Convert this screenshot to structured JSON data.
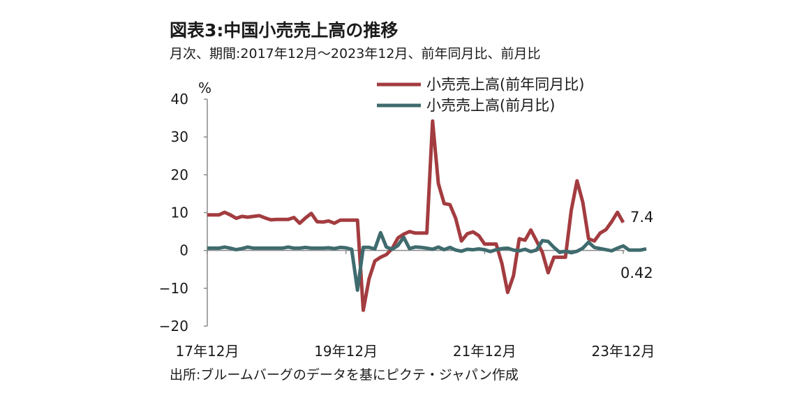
{
  "title": "図表3:中国小売売上高の推移",
  "subtitle": "月次、期間:2017年12月～2023年12月、前年同月比、前月比",
  "source": "出所:ブルームバーグのデータを基にピクテ・ジャパン作成",
  "chart_data": {
    "type": "line",
    "title": "図表3:中国小売売上高の推移",
    "subtitle": "月次、期間:2017年12月～2023年12月、前年同月比、前月比",
    "ylabel": "%",
    "ylim": [
      -20,
      40
    ],
    "yticks": [
      {
        "value": 40,
        "label": "40"
      },
      {
        "value": 30,
        "label": "30"
      },
      {
        "value": 20,
        "label": "20"
      },
      {
        "value": 10,
        "label": "10"
      },
      {
        "value": 0,
        "label": "0"
      },
      {
        "value": -10,
        "label": "−10"
      },
      {
        "value": -20,
        "label": "−20"
      }
    ],
    "xrange": [
      "2017-12",
      "2023-12"
    ],
    "xticks": [
      {
        "date": "2017-12",
        "label": "17年12月"
      },
      {
        "date": "2019-12",
        "label": "19年12月"
      },
      {
        "date": "2021-12",
        "label": "21年12月"
      },
      {
        "date": "2023-12",
        "label": "23年12月"
      }
    ],
    "grid": false,
    "legend_position": "top-right",
    "series": [
      {
        "name": "小売売上高(前年同月比)",
        "color": "#a33c40",
        "points": [
          [
            "2017-12",
            9.4
          ],
          [
            "2018-01",
            9.4
          ],
          [
            "2018-02",
            9.4
          ],
          [
            "2018-03",
            10.1
          ],
          [
            "2018-04",
            9.4
          ],
          [
            "2018-05",
            8.5
          ],
          [
            "2018-06",
            9.0
          ],
          [
            "2018-07",
            8.8
          ],
          [
            "2018-08",
            9.0
          ],
          [
            "2018-09",
            9.2
          ],
          [
            "2018-10",
            8.6
          ],
          [
            "2018-11",
            8.1
          ],
          [
            "2018-12",
            8.2
          ],
          [
            "2019-01",
            8.2
          ],
          [
            "2019-02",
            8.2
          ],
          [
            "2019-03",
            8.7
          ],
          [
            "2019-04",
            7.2
          ],
          [
            "2019-05",
            8.6
          ],
          [
            "2019-06",
            9.8
          ],
          [
            "2019-07",
            7.6
          ],
          [
            "2019-08",
            7.5
          ],
          [
            "2019-09",
            7.8
          ],
          [
            "2019-10",
            7.2
          ],
          [
            "2019-11",
            8.0
          ],
          [
            "2019-12",
            8.0
          ],
          [
            "2020-01",
            8.0
          ],
          [
            "2020-02",
            8.0
          ],
          [
            "2020-03",
            -15.8
          ],
          [
            "2020-04",
            -7.5
          ],
          [
            "2020-05",
            -2.8
          ],
          [
            "2020-06",
            -1.8
          ],
          [
            "2020-07",
            -1.1
          ],
          [
            "2020-08",
            0.5
          ],
          [
            "2020-09",
            3.3
          ],
          [
            "2020-10",
            4.3
          ],
          [
            "2020-11",
            5.0
          ],
          [
            "2020-12",
            4.6
          ],
          [
            "2021-01",
            4.6
          ],
          [
            "2021-02",
            4.6
          ],
          [
            "2021-03",
            34.2
          ],
          [
            "2021-04",
            17.7
          ],
          [
            "2021-05",
            12.4
          ],
          [
            "2021-06",
            12.1
          ],
          [
            "2021-07",
            8.5
          ],
          [
            "2021-08",
            2.5
          ],
          [
            "2021-09",
            4.4
          ],
          [
            "2021-10",
            4.9
          ],
          [
            "2021-11",
            3.9
          ],
          [
            "2021-12",
            1.7
          ],
          [
            "2022-01",
            1.7
          ],
          [
            "2022-02",
            1.7
          ],
          [
            "2022-03",
            -3.5
          ],
          [
            "2022-04",
            -11.1
          ],
          [
            "2022-05",
            -6.7
          ],
          [
            "2022-06",
            3.1
          ],
          [
            "2022-07",
            2.7
          ],
          [
            "2022-08",
            5.4
          ],
          [
            "2022-09",
            2.5
          ],
          [
            "2022-10",
            -0.5
          ],
          [
            "2022-11",
            -5.9
          ],
          [
            "2022-12",
            -1.8
          ],
          [
            "2023-01",
            -1.8
          ],
          [
            "2023-02",
            -1.8
          ],
          [
            "2023-03",
            10.6
          ],
          [
            "2023-04",
            18.4
          ],
          [
            "2023-05",
            12.7
          ],
          [
            "2023-06",
            3.1
          ],
          [
            "2023-07",
            2.5
          ],
          [
            "2023-08",
            4.6
          ],
          [
            "2023-09",
            5.5
          ],
          [
            "2023-10",
            7.6
          ],
          [
            "2023-11",
            10.1
          ],
          [
            "2023-12",
            7.4
          ]
        ]
      },
      {
        "name": "小売売上高(前月比)",
        "color": "#3f6b6e",
        "points": [
          [
            "2017-12",
            0.6
          ],
          [
            "2018-01",
            0.6
          ],
          [
            "2018-02",
            0.6
          ],
          [
            "2018-03",
            0.9
          ],
          [
            "2018-04",
            0.6
          ],
          [
            "2018-05",
            0.2
          ],
          [
            "2018-06",
            0.5
          ],
          [
            "2018-07",
            0.9
          ],
          [
            "2018-08",
            0.6
          ],
          [
            "2018-09",
            0.6
          ],
          [
            "2018-10",
            0.6
          ],
          [
            "2018-11",
            0.6
          ],
          [
            "2018-12",
            0.6
          ],
          [
            "2019-01",
            0.6
          ],
          [
            "2019-02",
            0.9
          ],
          [
            "2019-03",
            0.6
          ],
          [
            "2019-04",
            0.6
          ],
          [
            "2019-05",
            0.8
          ],
          [
            "2019-06",
            0.6
          ],
          [
            "2019-07",
            0.6
          ],
          [
            "2019-08",
            0.6
          ],
          [
            "2019-09",
            0.7
          ],
          [
            "2019-10",
            0.5
          ],
          [
            "2019-11",
            0.8
          ],
          [
            "2019-12",
            0.7
          ],
          [
            "2020-01",
            0.3
          ],
          [
            "2020-02",
            -10.5
          ],
          [
            "2020-03",
            0.8
          ],
          [
            "2020-04",
            0.8
          ],
          [
            "2020-05",
            0.4
          ],
          [
            "2020-06",
            4.7
          ],
          [
            "2020-07",
            0.9
          ],
          [
            "2020-08",
            0.3
          ],
          [
            "2020-09",
            1.3
          ],
          [
            "2020-10",
            3.5
          ],
          [
            "2020-11",
            0.5
          ],
          [
            "2020-12",
            0.9
          ],
          [
            "2021-01",
            0.8
          ],
          [
            "2021-02",
            0.6
          ],
          [
            "2021-03",
            0.3
          ],
          [
            "2021-04",
            0.9
          ],
          [
            "2021-05",
            0.2
          ],
          [
            "2021-06",
            0.8
          ],
          [
            "2021-07",
            0.1
          ],
          [
            "2021-08",
            -0.2
          ],
          [
            "2021-09",
            0.3
          ],
          [
            "2021-10",
            0.2
          ],
          [
            "2021-11",
            0.4
          ],
          [
            "2021-12",
            0.2
          ],
          [
            "2022-01",
            -0.3
          ],
          [
            "2022-02",
            0.2
          ],
          [
            "2022-03",
            0.5
          ],
          [
            "2022-04",
            0.6
          ],
          [
            "2022-05",
            0.1
          ],
          [
            "2022-06",
            -0.1
          ],
          [
            "2022-07",
            0.3
          ],
          [
            "2022-08",
            -0.3
          ],
          [
            "2022-09",
            0.1
          ],
          [
            "2022-10",
            2.6
          ],
          [
            "2022-11",
            2.4
          ],
          [
            "2022-12",
            0.8
          ],
          [
            "2023-01",
            -0.5
          ],
          [
            "2023-02",
            -0.2
          ],
          [
            "2023-03",
            -0.6
          ],
          [
            "2023-04",
            -0.2
          ],
          [
            "2023-05",
            0.6
          ],
          [
            "2023-06",
            2.2
          ],
          [
            "2023-07",
            0.8
          ],
          [
            "2023-08",
            0.5
          ],
          [
            "2023-09",
            0.2
          ],
          [
            "2023-10",
            -0.1
          ],
          [
            "2023-11",
            0.6
          ],
          [
            "2023-12",
            1.2
          ],
          [
            "2024-01",
            0.1
          ],
          [
            "2024-02",
            0.1
          ],
          [
            "2024-03",
            0.1
          ],
          [
            "2024-04",
            0.42
          ]
        ]
      }
    ],
    "annotations": [
      {
        "label": "7.4",
        "series": 0
      },
      {
        "label": "0.42",
        "series": 1
      }
    ]
  }
}
